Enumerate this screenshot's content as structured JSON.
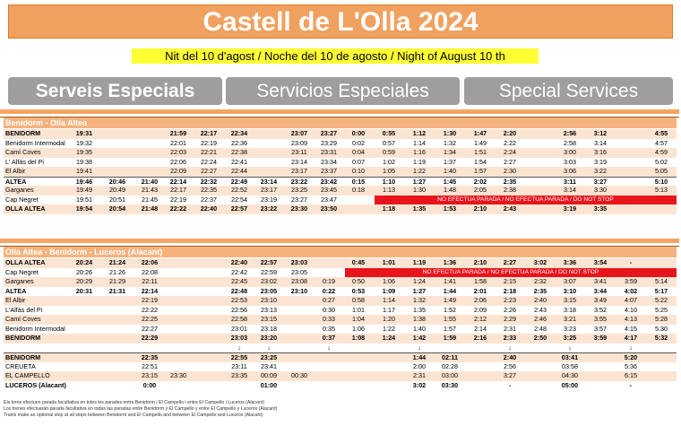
{
  "title": "Castell de L'Olla 2024",
  "night": "Nit del 10 d'agost / Noche del 10 de agosto / Night of August 10 th",
  "services": {
    "ca": "Serveis Especials",
    "es": "Servicios Especiales",
    "en": "Special Services"
  },
  "colors": {
    "accent": "#f0a15f",
    "header": "#f6b27d",
    "alt_row": "#fce4d2",
    "highlight": "#ffff33",
    "no_stop": "#e8141c",
    "service_button": "#9e9e9e"
  },
  "table1": {
    "title": "Benidorm - Olla Altea",
    "no_stop": "NO EFECTUA PARADA / NO EFECTUA PARADA / DO NOT STOP",
    "rows": [
      {
        "station": "BENIDORM",
        "bold": true,
        "times": [
          "19:31",
          "",
          "",
          "21:59",
          "22:17",
          "22:34",
          "",
          "23:07",
          "23:27",
          "0:00",
          "0:55",
          "1:12",
          "1:30",
          "1:47",
          "2:20",
          "",
          "2:56",
          "3:12",
          "",
          "4:55"
        ]
      },
      {
        "station": "Benidorm Intermodal",
        "times": [
          "19:32",
          "",
          "",
          "22:01",
          "22:19",
          "22:36",
          "",
          "23:09",
          "23:29",
          "0:02",
          "0:57",
          "1:14",
          "1:32",
          "1:49",
          "2:22",
          "",
          "2:58",
          "3:14",
          "",
          "4:57"
        ]
      },
      {
        "station": "Camí Coves",
        "times": [
          "19:35",
          "",
          "",
          "22:03",
          "22:21",
          "22:38",
          "",
          "23:11",
          "23:31",
          "0:04",
          "0:59",
          "1:16",
          "1:34",
          "1:51",
          "2:24",
          "",
          "3:00",
          "3:16",
          "",
          "4:59"
        ]
      },
      {
        "station": "L' Alfàs del Pi",
        "times": [
          "19:38",
          "",
          "",
          "22:06",
          "22:24",
          "22:41",
          "",
          "23:14",
          "23:34",
          "0:07",
          "1:02",
          "1:19",
          "1:37",
          "1:54",
          "2:27",
          "",
          "3:03",
          "3:19",
          "",
          "5:02"
        ]
      },
      {
        "station": "El Albir",
        "times": [
          "19:41",
          "",
          "",
          "22:09",
          "22:27",
          "22:44",
          "",
          "23:17",
          "23:37",
          "0:10",
          "1:05",
          "1:22",
          "1:40",
          "1:57",
          "2:30",
          "",
          "3:06",
          "3:22",
          "",
          "5:05"
        ]
      },
      {
        "station": "ALTEA",
        "bold": true,
        "times": [
          "19:46",
          "20:46",
          "21:40",
          "22:14",
          "22:32",
          "22:49",
          "23:14",
          "23:22",
          "23:42",
          "0:15",
          "1:10",
          "1:27",
          "1:45",
          "2:02",
          "2:35",
          "",
          "3:11",
          "3:27",
          "",
          "5:10"
        ]
      },
      {
        "station": "Garganes",
        "times": [
          "19:49",
          "20:49",
          "21:43",
          "22:17",
          "22:35",
          "22:52",
          "23:17",
          "23:25",
          "23:45",
          "0:18",
          "1:13",
          "1:30",
          "1:48",
          "2:05",
          "2:38",
          "",
          "3:14",
          "3:30",
          "",
          "5:13"
        ]
      },
      {
        "station": "Cap Negret",
        "nostop": true,
        "times": [
          "19:51",
          "20:51",
          "21:45",
          "22:19",
          "22:37",
          "22:54",
          "23:19",
          "23:27",
          "23:47"
        ]
      },
      {
        "station": "OLLA ALTEA",
        "bold": true,
        "times": [
          "19:54",
          "20:54",
          "21:48",
          "22:22",
          "22:40",
          "22:57",
          "23:22",
          "23:30",
          "23:50",
          "",
          "1:18",
          "1:35",
          "1:53",
          "2:10",
          "2:43",
          "",
          "3:19",
          "3:35",
          "",
          ""
        ]
      }
    ]
  },
  "table2": {
    "title": "Olla Altea - Benidorm - Luceros (Alacant)",
    "no_stop": "NO EFECTUA PARADA / NO EFECTUA PARADA / DO NOT STOP",
    "rows": [
      {
        "station": "OLLA ALTEA",
        "bold": true,
        "times": [
          "20:24",
          "21:24",
          "22:06",
          "",
          "",
          "22:40",
          "22:57",
          "23:03",
          "",
          "0:45",
          "1:01",
          "1:19",
          "1:36",
          "2:10",
          "2:27",
          "3:02",
          "3:36",
          "3:54",
          "-",
          ""
        ]
      },
      {
        "station": "Cap Negret",
        "nostop": true,
        "times": [
          "20:26",
          "21:26",
          "22:08",
          "",
          "",
          "22:42",
          "22:59",
          "23:05"
        ]
      },
      {
        "station": "Garganes",
        "times": [
          "20:29",
          "21:29",
          "22:11",
          "",
          "",
          "22:45",
          "23:02",
          "23:08",
          "0:19",
          "0:50",
          "1:06",
          "1:24",
          "1:41",
          "1:58",
          "2:15",
          "2:32",
          "3:07",
          "3:41",
          "3:59",
          "5:14"
        ]
      },
      {
        "station": "ALTEA",
        "bold": true,
        "times": [
          "20:31",
          "21:31",
          "22:14",
          "",
          "",
          "22:48",
          "23:05",
          "23:10",
          "0:22",
          "0:53",
          "1:09",
          "1:27",
          "1:44",
          "2:01",
          "2:18",
          "2:35",
          "3:10",
          "3:44",
          "4:02",
          "5:17"
        ]
      },
      {
        "station": "El Albir",
        "times": [
          "",
          "",
          "22:19",
          "",
          "",
          "22:53",
          "23:10",
          "",
          "0:27",
          "0:58",
          "1:14",
          "1:32",
          "1:49",
          "2:06",
          "2:23",
          "2:40",
          "3:15",
          "3:49",
          "4:07",
          "5:22"
        ]
      },
      {
        "station": "L'Alfàs del Pi",
        "times": [
          "",
          "",
          "22:22",
          "",
          "",
          "22:56",
          "23:13",
          "",
          "0:30",
          "1:01",
          "1:17",
          "1:35",
          "1:52",
          "2:09",
          "2:26",
          "2:43",
          "3:18",
          "3:52",
          "4:10",
          "5:25"
        ]
      },
      {
        "station": "Camí Coves",
        "times": [
          "",
          "",
          "22:25",
          "",
          "",
          "22:58",
          "23:15",
          "",
          "0:33",
          "1:04",
          "1:20",
          "1:38",
          "1:55",
          "2:12",
          "2:29",
          "2:46",
          "3:21",
          "3:55",
          "4:13",
          "5:28"
        ]
      },
      {
        "station": "Benidorm Intermodal",
        "times": [
          "",
          "",
          "22:27",
          "",
          "",
          "23:01",
          "23:18",
          "",
          "0:35",
          "1:06",
          "1:22",
          "1:40",
          "1:57",
          "2:14",
          "2:31",
          "2:48",
          "3:23",
          "3:57",
          "4:15",
          "5:30"
        ]
      },
      {
        "station": "BENIDORM",
        "bold": true,
        "times": [
          "",
          "",
          "22:29",
          "",
          "",
          "23:03",
          "23:20",
          "",
          "0:37",
          "1:08",
          "1:24",
          "1:42",
          "1:59",
          "2:16",
          "2:33",
          "2:50",
          "3:25",
          "3:59",
          "4:17",
          "5:32"
        ]
      },
      {
        "station": "",
        "times": [
          "",
          "",
          "",
          "",
          "",
          "↓",
          "↓",
          "",
          "↓",
          "",
          "",
          "↓",
          "",
          "",
          "↓",
          "",
          "↓",
          "",
          "↓",
          ""
        ]
      },
      {
        "station": "BENIDORM",
        "bold": true,
        "times": [
          "",
          "",
          "22:35",
          "",
          "",
          "22:55",
          "23:25",
          "",
          "",
          "",
          "",
          "1:44",
          "02:11",
          "",
          "2:40",
          "",
          "03:41",
          "",
          "5:20",
          ""
        ]
      },
      {
        "station": "CREUETA",
        "times": [
          "",
          "",
          "22:51",
          "",
          "",
          "23:11",
          "23:41",
          "",
          "",
          "",
          "",
          "2:00",
          "02:28",
          "",
          "2:56",
          "",
          "03:58",
          "",
          "5:36",
          ""
        ]
      },
      {
        "station": "EL CAMPELLO",
        "times": [
          "",
          "",
          "23:15",
          "23:30",
          "",
          "23:35",
          "00:09",
          "00:30",
          "",
          "",
          "",
          "2:31",
          "03:00",
          "",
          "3:27",
          "",
          "04:30",
          "",
          "6:15",
          ""
        ]
      },
      {
        "station": "LUCEROS (Alacant)",
        "bold": true,
        "times": [
          "",
          "",
          "0:00",
          "",
          "",
          "",
          "01:00",
          "",
          "",
          "",
          "",
          "3:02",
          "03:30",
          "",
          "-",
          "",
          "05:00",
          "",
          "-",
          ""
        ]
      }
    ]
  },
  "footnotes": [
    "Els trens efectuen parada facultativa en totes les parades entre Benidorm i El Campello i entre El Campello i Luceros (Alacant)",
    "Los trenes efectuarán parada facultativa en todas las paradas entre Benidorm y El Campello y entre El Campello y Luceros (Alacant)",
    "Trains make an optional stop at all stops between Benidorm and El Campello and between El Campello and Luceros (Alacant)"
  ]
}
